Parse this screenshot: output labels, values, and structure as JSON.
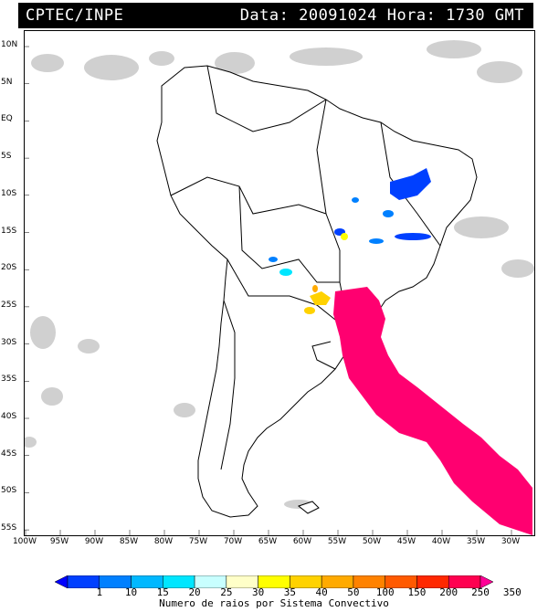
{
  "title": {
    "source": "CPTEC/INPE",
    "datetime": "Data: 20091024 Hora: 1730 GMT"
  },
  "map": {
    "lat_labels": [
      "10N",
      "5N",
      "EQ",
      "5S",
      "10S",
      "15S",
      "20S",
      "25S",
      "30S",
      "35S",
      "40S",
      "45S",
      "50S",
      "55S"
    ],
    "lon_labels": [
      "100W",
      "95W",
      "90W",
      "85W",
      "80W",
      "75W",
      "70W",
      "65W",
      "60W",
      "55W",
      "50W",
      "45W",
      "40W",
      "35W",
      "30W"
    ],
    "land_fill": "#ffffff",
    "coast_color": "#000000",
    "cloud_color": "#c8c8c8"
  },
  "colorbar": {
    "title": "Numero de raios por Sistema Convectivo",
    "labels": [
      "1",
      "10",
      "15",
      "20",
      "25",
      "30",
      "35",
      "40",
      "50",
      "100",
      "150",
      "200",
      "250",
      "350"
    ],
    "colors": [
      "#0000ff",
      "#0040ff",
      "#0080ff",
      "#00b8ff",
      "#00e6ff",
      "#c8ffff",
      "#ffffc8",
      "#ffff00",
      "#ffd200",
      "#ffaa00",
      "#ff8200",
      "#ff5a00",
      "#ff2800",
      "#ff0050",
      "#ff0096"
    ]
  }
}
